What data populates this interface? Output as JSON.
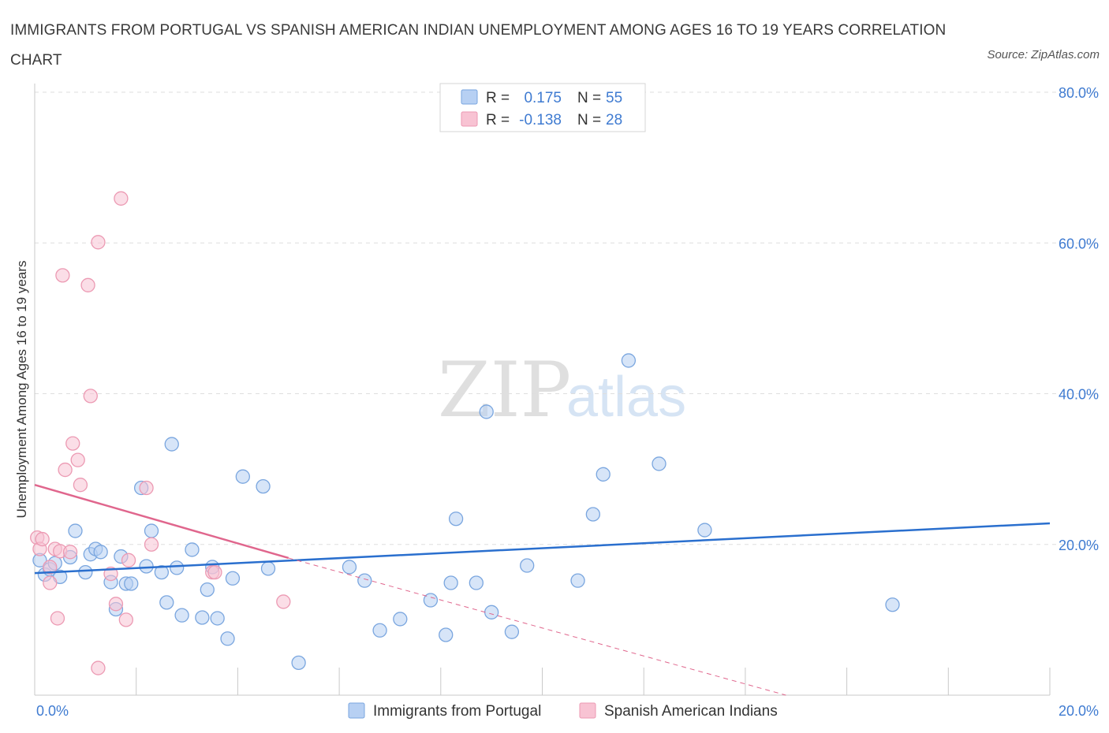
{
  "title": "IMMIGRANTS FROM PORTUGAL VS SPANISH AMERICAN INDIAN UNEMPLOYMENT AMONG AGES 16 TO 19 YEARS CORRELATION CHART",
  "source": "Source: ZipAtlas.com",
  "watermark": {
    "zip": "ZIP",
    "atlas": "atlas"
  },
  "colors": {
    "blue_fill": "#b7d0f3",
    "blue_stroke": "#7aa6df",
    "blue_line": "#2a6fce",
    "pink_fill": "#f8c3d3",
    "pink_stroke": "#ec9ab3",
    "pink_line": "#e0668d",
    "axis_text": "#3f7bd1"
  },
  "legend": {
    "rows": [
      {
        "r_label": "R =",
        "r_value": "0.175",
        "n_label": "N =",
        "n_value": "55"
      },
      {
        "r_label": "R =",
        "r_value": "-0.138",
        "n_label": "N =",
        "n_value": "28"
      }
    ]
  },
  "bottom_legend": [
    "Immigrants from Portugal",
    "Spanish American Indians"
  ],
  "chart_data": {
    "type": "scatter",
    "xlabel": "",
    "ylabel": "Unemployment Among Ages 16 to 19 years",
    "xlim": [
      0,
      20
    ],
    "ylim": [
      0,
      80
    ],
    "x_tick_labels": [
      "0.0%",
      "20.0%"
    ],
    "y_ticks": [
      20,
      40,
      60,
      80
    ],
    "y_tick_labels": [
      "20.0%",
      "40.0%",
      "60.0%",
      "80.0%"
    ],
    "grid": true,
    "series": [
      {
        "name": "Immigrants from Portugal",
        "r": 0.175,
        "n": 55,
        "trend": {
          "x": [
            0,
            20
          ],
          "y": [
            16.2,
            22.8
          ]
        },
        "points": [
          [
            0.1,
            17.9
          ],
          [
            0.2,
            16.0
          ],
          [
            0.3,
            16.7
          ],
          [
            0.4,
            17.5
          ],
          [
            0.5,
            15.7
          ],
          [
            0.7,
            18.3
          ],
          [
            0.8,
            21.8
          ],
          [
            1.0,
            16.3
          ],
          [
            1.1,
            18.7
          ],
          [
            1.2,
            19.4
          ],
          [
            1.3,
            19.0
          ],
          [
            1.5,
            15.0
          ],
          [
            1.6,
            11.4
          ],
          [
            1.7,
            18.4
          ],
          [
            1.8,
            14.8
          ],
          [
            1.9,
            14.8
          ],
          [
            2.1,
            27.5
          ],
          [
            2.2,
            17.1
          ],
          [
            2.3,
            21.8
          ],
          [
            2.5,
            16.3
          ],
          [
            2.6,
            12.3
          ],
          [
            2.7,
            33.3
          ],
          [
            2.8,
            16.9
          ],
          [
            2.9,
            10.6
          ],
          [
            3.1,
            19.3
          ],
          [
            3.3,
            10.3
          ],
          [
            3.4,
            14.0
          ],
          [
            3.5,
            17.0
          ],
          [
            3.6,
            10.2
          ],
          [
            3.8,
            7.5
          ],
          [
            3.9,
            15.5
          ],
          [
            4.1,
            29.0
          ],
          [
            4.5,
            27.7
          ],
          [
            4.6,
            16.8
          ],
          [
            5.2,
            4.3
          ],
          [
            6.2,
            17.0
          ],
          [
            6.5,
            15.2
          ],
          [
            6.8,
            8.6
          ],
          [
            7.2,
            10.1
          ],
          [
            7.8,
            12.6
          ],
          [
            8.1,
            8.0
          ],
          [
            8.2,
            14.9
          ],
          [
            8.3,
            23.4
          ],
          [
            8.7,
            14.9
          ],
          [
            8.9,
            37.6
          ],
          [
            9.0,
            11.0
          ],
          [
            9.4,
            8.4
          ],
          [
            9.7,
            17.2
          ],
          [
            10.7,
            15.2
          ],
          [
            11.0,
            24.0
          ],
          [
            11.2,
            29.3
          ],
          [
            11.7,
            44.4
          ],
          [
            12.3,
            30.7
          ],
          [
            13.2,
            21.9
          ],
          [
            16.9,
            12.0
          ]
        ]
      },
      {
        "name": "Spanish American Indians",
        "r": -0.138,
        "n": 28,
        "trend": {
          "x": [
            0,
            5.0
          ],
          "y": [
            27.9,
            18.2
          ]
        },
        "trend_dashed": {
          "x": [
            5.0,
            14.8
          ],
          "y": [
            18.2,
            0
          ]
        },
        "points": [
          [
            0.05,
            20.9
          ],
          [
            0.1,
            19.4
          ],
          [
            0.15,
            20.7
          ],
          [
            0.3,
            17.0
          ],
          [
            0.3,
            14.9
          ],
          [
            0.4,
            19.4
          ],
          [
            0.45,
            10.2
          ],
          [
            0.5,
            19.1
          ],
          [
            0.55,
            55.7
          ],
          [
            0.6,
            29.9
          ],
          [
            0.7,
            19.0
          ],
          [
            0.75,
            33.4
          ],
          [
            0.85,
            31.2
          ],
          [
            0.9,
            27.9
          ],
          [
            1.05,
            54.4
          ],
          [
            1.1,
            39.7
          ],
          [
            1.25,
            3.6
          ],
          [
            1.25,
            60.1
          ],
          [
            1.5,
            16.1
          ],
          [
            1.6,
            12.1
          ],
          [
            1.7,
            65.9
          ],
          [
            1.8,
            10.0
          ],
          [
            1.85,
            17.9
          ],
          [
            2.2,
            27.5
          ],
          [
            2.3,
            20.0
          ],
          [
            3.5,
            16.3
          ],
          [
            3.55,
            16.3
          ],
          [
            4.9,
            12.4
          ]
        ]
      }
    ]
  }
}
